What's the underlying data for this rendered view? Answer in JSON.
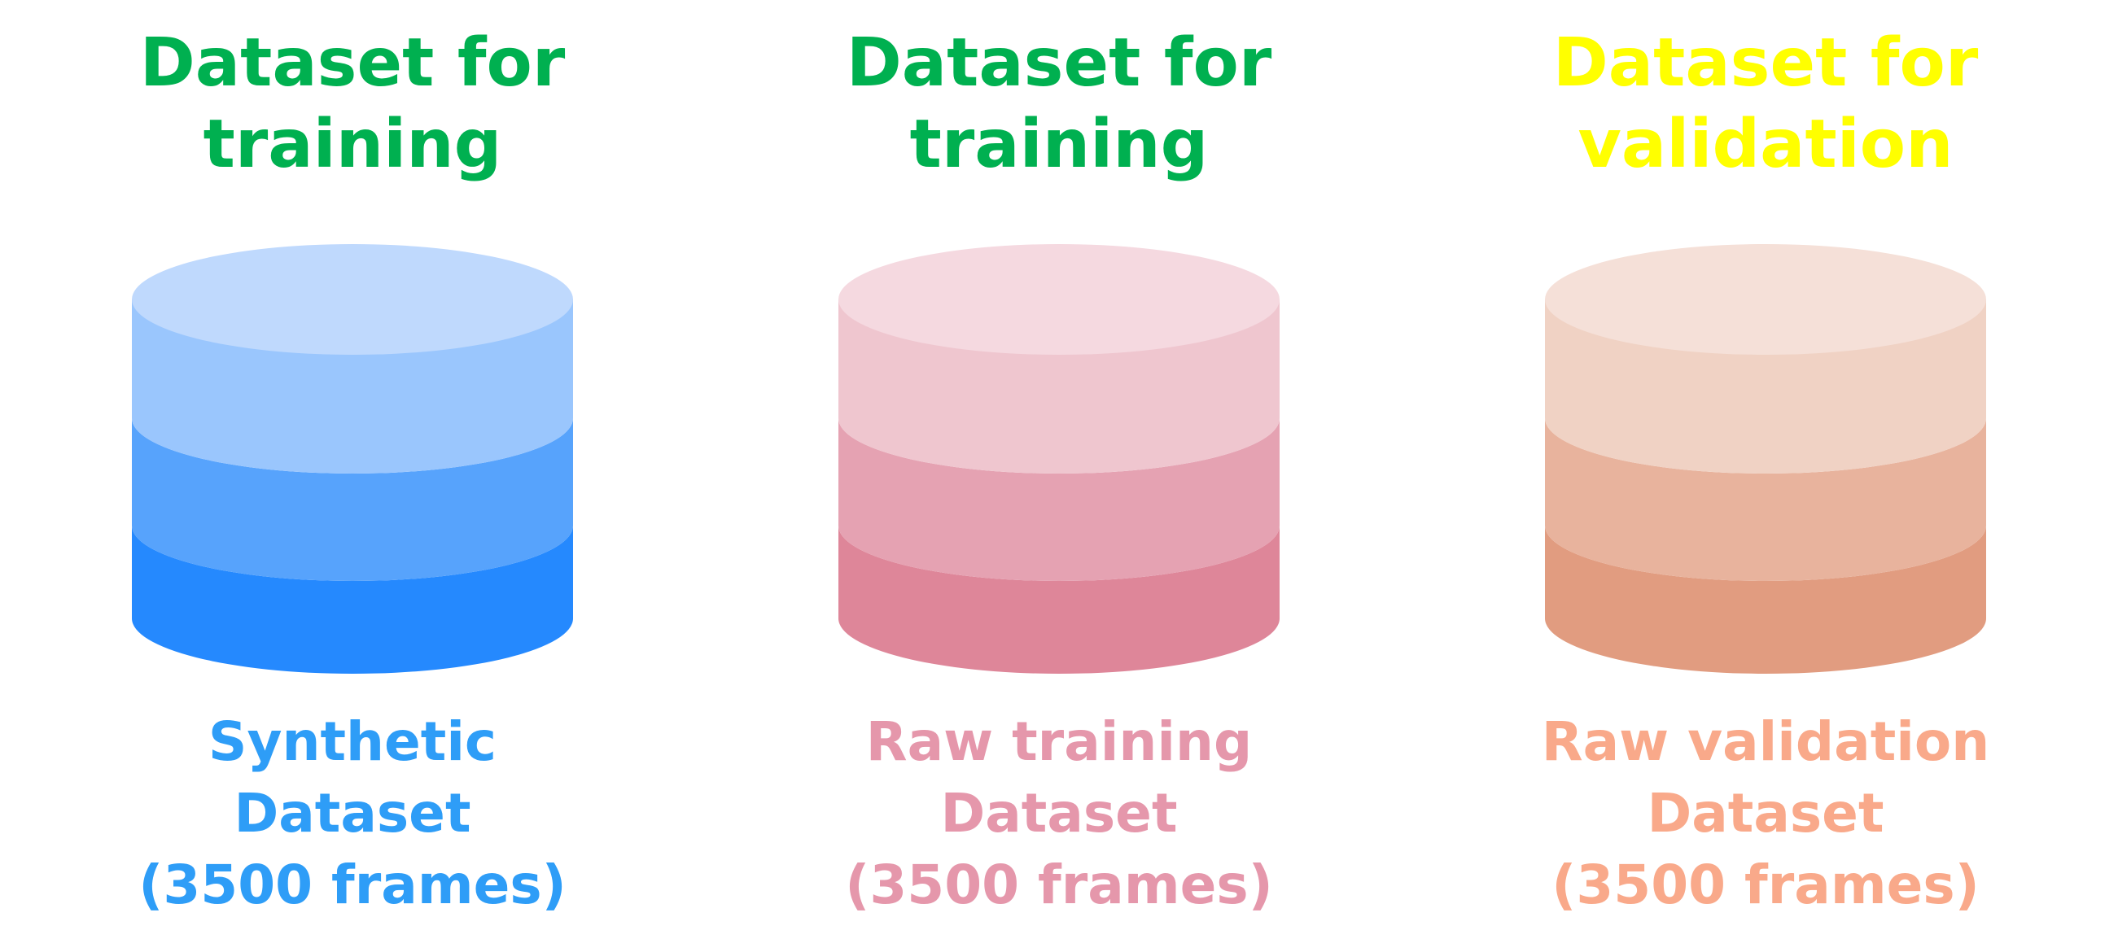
{
  "datasets": [
    {
      "purpose_lines": [
        "Dataset for",
        "training"
      ],
      "purpose_color": "#00b050",
      "name_lines": [
        "Synthetic",
        "Dataset",
        "(3500 frames)"
      ],
      "name_color": "#2e9df7",
      "layer_colors": {
        "top": "#bfd9fd",
        "layer1": "#9ac6fd",
        "layer2": "#57a3fc",
        "layer3": "#2589fe"
      }
    },
    {
      "purpose_lines": [
        "Dataset for",
        "training"
      ],
      "purpose_color": "#00b050",
      "name_lines": [
        "Raw training",
        "Dataset",
        "(3500 frames)"
      ],
      "name_color": "#e597ab",
      "layer_colors": {
        "top": "#f5d9e0",
        "layer1": "#efc6cf",
        "layer2": "#e5a2b2",
        "layer3": "#de8699"
      }
    },
    {
      "purpose_lines": [
        "Dataset for",
        "validation"
      ],
      "purpose_color": "#ffff00",
      "name_lines": [
        "Raw validation",
        "Dataset",
        "(3500 frames)"
      ],
      "name_color": "#f9a98a",
      "layer_colors": {
        "top": "#f5e0d8",
        "layer1": "#f0d2c4",
        "layer2": "#e8b39d",
        "layer3": "#e19c80"
      }
    }
  ]
}
